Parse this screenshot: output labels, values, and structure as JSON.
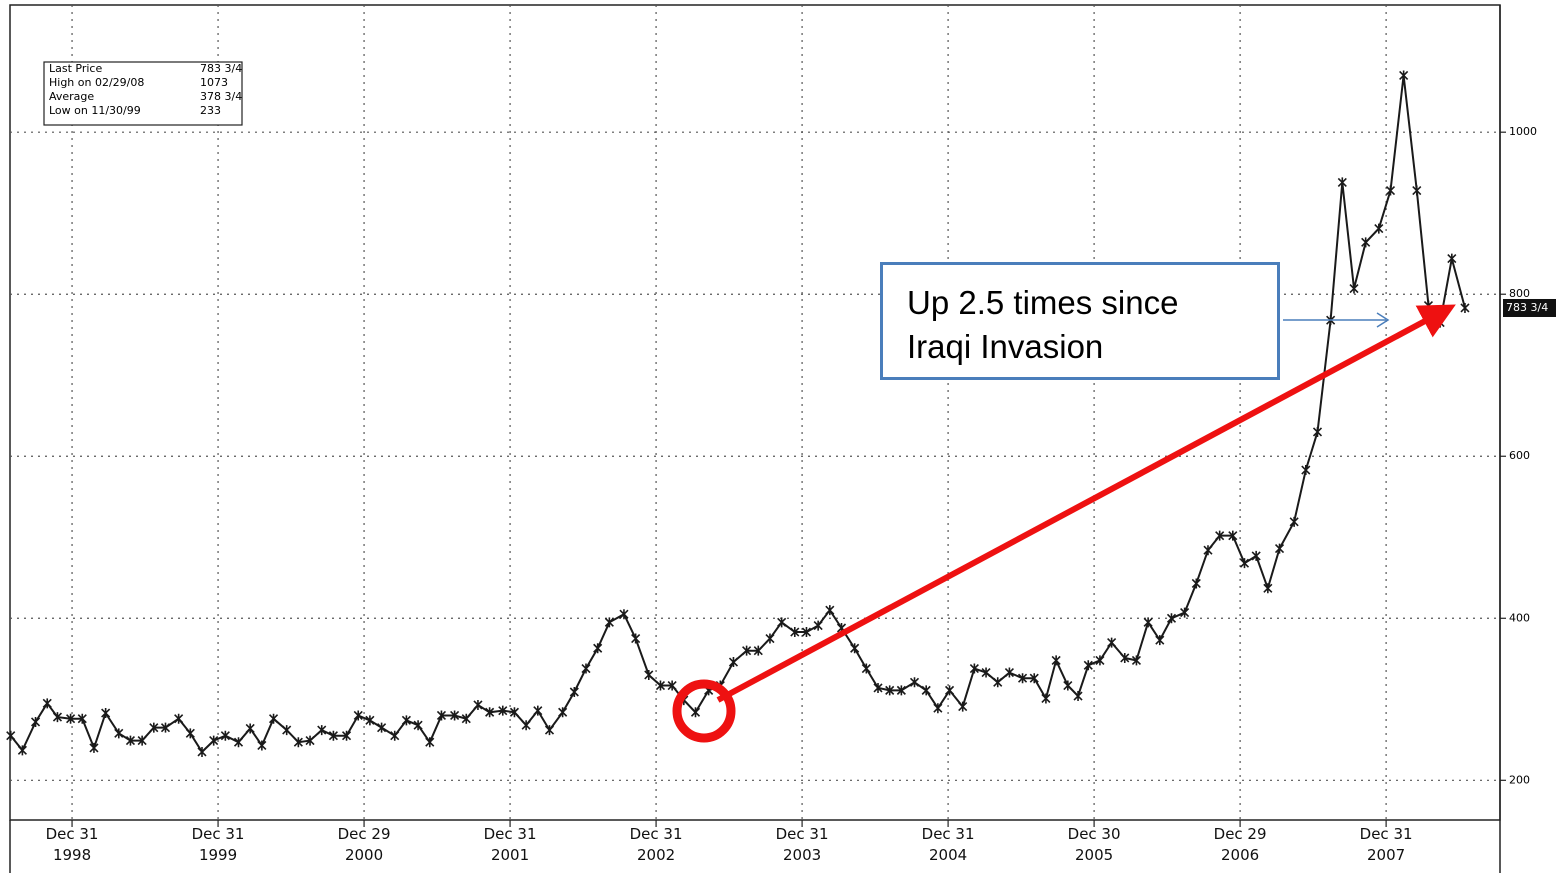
{
  "chart_data": {
    "type": "line",
    "stats": [
      {
        "label": "Last Price",
        "value": "783 3/4"
      },
      {
        "label": "High on 02/29/08",
        "value": "1073"
      },
      {
        "label": "Average",
        "value": "378 3/4"
      },
      {
        "label": "Low on 11/30/99",
        "value": "233"
      }
    ],
    "annotation": [
      "Up 2.5 times since",
      "Iraqi Invasion"
    ],
    "color": "#1a1a1a",
    "grid": true,
    "xlim": [
      1998.575,
      2008.78
    ],
    "ylim": [
      151,
      1157
    ],
    "xticks": [
      {
        "value": 1999,
        "label": "Dec 31 1998"
      },
      {
        "value": 2000,
        "label": "Dec 31 1999"
      },
      {
        "value": 2001,
        "label": "Dec 29 2000"
      },
      {
        "value": 2002,
        "label": "Dec 31 2001"
      },
      {
        "value": 2003,
        "label": "Dec 31 2002"
      },
      {
        "value": 2004,
        "label": "Dec 31 2003"
      },
      {
        "value": 2005,
        "label": "Dec 31 2004"
      },
      {
        "value": 2006,
        "label": "Dec 30 2005"
      },
      {
        "value": 2007,
        "label": "Dec 29 2006"
      },
      {
        "value": 2008,
        "label": "Dec 31 2007"
      }
    ],
    "yticks": [
      200,
      400,
      600,
      800,
      1000
    ],
    "x": [
      1998.58,
      1998.66,
      1998.75,
      1998.83,
      1998.9,
      1998.99,
      1999.07,
      1999.15,
      1999.23,
      1999.32,
      1999.4,
      1999.48,
      1999.56,
      1999.64,
      1999.73,
      1999.81,
      1999.89,
      1999.97,
      2000.05,
      2000.14,
      2000.22,
      2000.3,
      2000.38,
      2000.47,
      2000.55,
      2000.63,
      2000.71,
      2000.79,
      2000.88,
      2000.96,
      2001.04,
      2001.12,
      2001.21,
      2001.29,
      2001.37,
      2001.45,
      2001.53,
      2001.62,
      2001.7,
      2001.78,
      2001.86,
      2001.95,
      2002.03,
      2002.11,
      2002.19,
      2002.27,
      2002.36,
      2002.44,
      2002.52,
      2002.6,
      2002.68,
      2002.78,
      2002.86,
      2002.95,
      2003.03,
      2003.11,
      2003.19,
      2003.27,
      2003.36,
      2003.44,
      2003.53,
      2003.62,
      2003.7,
      2003.78,
      2003.86,
      2003.95,
      2004.03,
      2004.11,
      2004.19,
      2004.27,
      2004.36,
      2004.44,
      2004.52,
      2004.6,
      2004.68,
      2004.77,
      2004.85,
      2004.93,
      2005.01,
      2005.1,
      2005.18,
      2005.26,
      2005.34,
      2005.42,
      2005.51,
      2005.59,
      2005.67,
      2005.74,
      2005.82,
      2005.89,
      2005.96,
      2006.04,
      2006.12,
      2006.21,
      2006.29,
      2006.37,
      2006.45,
      2006.53,
      2006.62,
      2006.7,
      2006.78,
      2006.86,
      2006.95,
      2007.03,
      2007.11,
      2007.19,
      2007.27,
      2007.37,
      2007.45,
      2007.53,
      2007.62,
      2007.7,
      2007.78,
      2007.86,
      2007.95,
      2008.03,
      2008.12,
      2008.21,
      2008.29,
      2008.37,
      2008.45,
      2008.54
    ],
    "values": [
      255,
      237,
      272,
      295,
      278,
      276,
      276,
      240,
      283,
      258,
      249,
      249,
      265,
      265,
      276,
      258,
      235,
      249,
      255,
      247,
      264,
      243,
      276,
      262,
      247,
      249,
      262,
      255,
      255,
      280,
      274,
      265,
      255,
      274,
      268,
      247,
      280,
      280,
      276,
      293,
      284,
      286,
      284,
      268,
      286,
      262,
      284,
      309,
      338,
      363,
      395,
      405,
      375,
      330,
      317,
      317,
      299,
      284,
      311,
      317,
      346,
      360,
      360,
      375,
      395,
      383,
      383,
      391,
      410,
      388,
      363,
      338,
      314,
      311,
      311,
      321,
      311,
      289,
      311,
      291,
      338,
      333,
      321,
      333,
      326,
      326,
      301,
      348,
      317,
      304,
      342,
      348,
      370,
      351,
      348,
      395,
      373,
      400,
      407,
      443,
      484,
      502,
      502,
      468,
      477,
      437,
      486,
      519,
      583,
      630,
      768,
      938,
      807,
      864,
      881,
      928,
      1070,
      928,
      786,
      765,
      844,
      783
    ]
  }
}
